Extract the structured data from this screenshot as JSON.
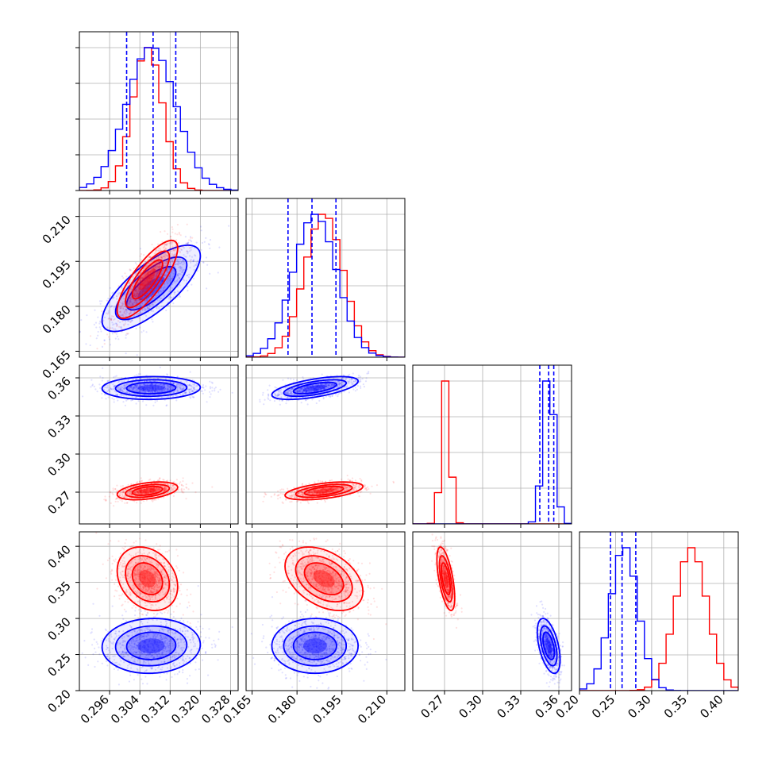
{
  "figure": {
    "type": "corner-plot",
    "parameters": [
      "p1",
      "p2",
      "p3",
      "p4"
    ],
    "colors": {
      "series_a": "#0000ff",
      "series_b": "#ff0000",
      "grid": "#b0b0b0"
    }
  },
  "chart_data": {
    "type": "corner",
    "grid": true,
    "parameters": [
      {
        "id": "p1",
        "label": "",
        "range": [
          0.288,
          0.33
        ],
        "ticks": [
          "0.296",
          "0.304",
          "0.312",
          "0.320",
          "0.328"
        ]
      },
      {
        "id": "p2",
        "label": "",
        "range": [
          0.163,
          0.216
        ],
        "ticks": [
          "0.165",
          "0.180",
          "0.195",
          "0.210"
        ]
      },
      {
        "id": "p3",
        "label": "",
        "range": [
          0.245,
          0.37
        ],
        "ticks": [
          "0.27",
          "0.30",
          "0.33",
          "0.36"
        ]
      },
      {
        "id": "p4",
        "label": "",
        "range": [
          0.2,
          0.42
        ],
        "ticks": [
          "0.20",
          "0.25",
          "0.30",
          "0.35",
          "0.40"
        ]
      }
    ],
    "series": [
      {
        "name": "",
        "color": "#0000ff",
        "mean": [
          0.307,
          0.186,
          0.352,
          0.262
        ],
        "std": [
          0.0065,
          0.0072,
          0.0045,
          0.019
        ],
        "correlations": {
          "p1-p2": 0.75,
          "p1-p3": 0.05,
          "p1-p4": 0.05,
          "p2-p3": 0.6,
          "p2-p4": 0.0,
          "p3-p4": -0.5
        },
        "quantiles_16_50_84": [
          [
            0.3005,
            0.3075,
            0.3135
          ],
          [
            0.177,
            0.185,
            0.193
          ],
          [
            0.345,
            0.352,
            0.356
          ],
          [
            0.243,
            0.259,
            0.278
          ]
        ]
      },
      {
        "name": "",
        "color": "#ff0000",
        "mean": [
          0.306,
          0.189,
          0.271,
          0.355
        ],
        "std": [
          0.004,
          0.0065,
          0.0035,
          0.022
        ],
        "correlations": {
          "p1-p2": 0.8,
          "p1-p3": 0.4,
          "p1-p4": -0.25,
          "p2-p3": 0.5,
          "p2-p4": -0.4,
          "p3-p4": -0.6
        }
      }
    ]
  }
}
